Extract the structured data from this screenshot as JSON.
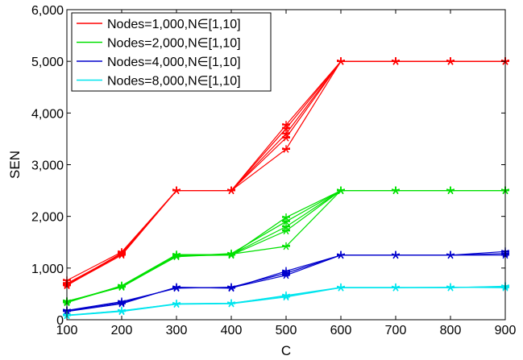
{
  "chart_data": {
    "type": "line",
    "xlabel": "C",
    "ylabel": "SEN",
    "xlim": [
      100,
      900
    ],
    "ylim": [
      0,
      6000
    ],
    "x": [
      100,
      200,
      300,
      400,
      500,
      600,
      700,
      800,
      900
    ],
    "x_tick_labels": [
      "100",
      "200",
      "300",
      "400",
      "500",
      "600",
      "700",
      "800",
      "900"
    ],
    "y_ticks": [
      0,
      1000,
      2000,
      3000,
      4000,
      5000,
      6000
    ],
    "y_tick_labels": [
      "0",
      "1,000",
      "2,000",
      "3,000",
      "4,000",
      "5,000",
      "6,000"
    ],
    "grid": false,
    "legend_position": "top-left",
    "groups": [
      {
        "name": "Nodes=1,000,N∈[1,10]",
        "color": "#ff0000",
        "marker": "star",
        "runs": [
          [
            670,
            1250,
            2500,
            2500,
            3300,
            5000,
            5000,
            5000,
            5000
          ],
          [
            700,
            1270,
            2500,
            2500,
            3600,
            5000,
            5000,
            5000,
            5000
          ],
          [
            680,
            1290,
            2500,
            2500,
            3700,
            5000,
            5000,
            5000,
            5000
          ],
          [
            760,
            1310,
            2500,
            2500,
            3770,
            5000,
            5000,
            5000,
            5000
          ],
          [
            660,
            1280,
            2500,
            2500,
            3520,
            5000,
            5000,
            5000,
            5000
          ]
        ]
      },
      {
        "name": "Nodes=2,000,N∈[1,10]",
        "color": "#00e000",
        "marker": "star",
        "runs": [
          [
            340,
            640,
            1220,
            1270,
            1420,
            2500,
            2500,
            2500,
            2500
          ],
          [
            350,
            650,
            1240,
            1250,
            1720,
            2500,
            2500,
            2500,
            2500
          ],
          [
            330,
            660,
            1260,
            1260,
            1800,
            2500,
            2500,
            2500,
            2500
          ],
          [
            360,
            630,
            1230,
            1280,
            1900,
            2500,
            2500,
            2500,
            2500
          ],
          [
            345,
            645,
            1250,
            1250,
            1980,
            2500,
            2500,
            2500,
            2500
          ]
        ]
      },
      {
        "name": "Nodes=4,000,N∈[1,10]",
        "color": "#0000cc",
        "marker": "star",
        "runs": [
          [
            170,
            330,
            620,
            620,
            860,
            1250,
            1250,
            1250,
            1320
          ],
          [
            180,
            350,
            610,
            630,
            900,
            1250,
            1250,
            1250,
            1250
          ],
          [
            160,
            310,
            630,
            610,
            940,
            1250,
            1250,
            1250,
            1280
          ]
        ]
      },
      {
        "name": "Nodes=8,000,N∈[1,10]",
        "color": "#00e5ee",
        "marker": "star",
        "runs": [
          [
            80,
            160,
            300,
            310,
            440,
            620,
            620,
            620,
            650
          ],
          [
            90,
            170,
            310,
            320,
            460,
            620,
            620,
            630,
            620
          ],
          [
            85,
            175,
            305,
            315,
            470,
            625,
            625,
            625,
            640
          ]
        ]
      }
    ]
  }
}
